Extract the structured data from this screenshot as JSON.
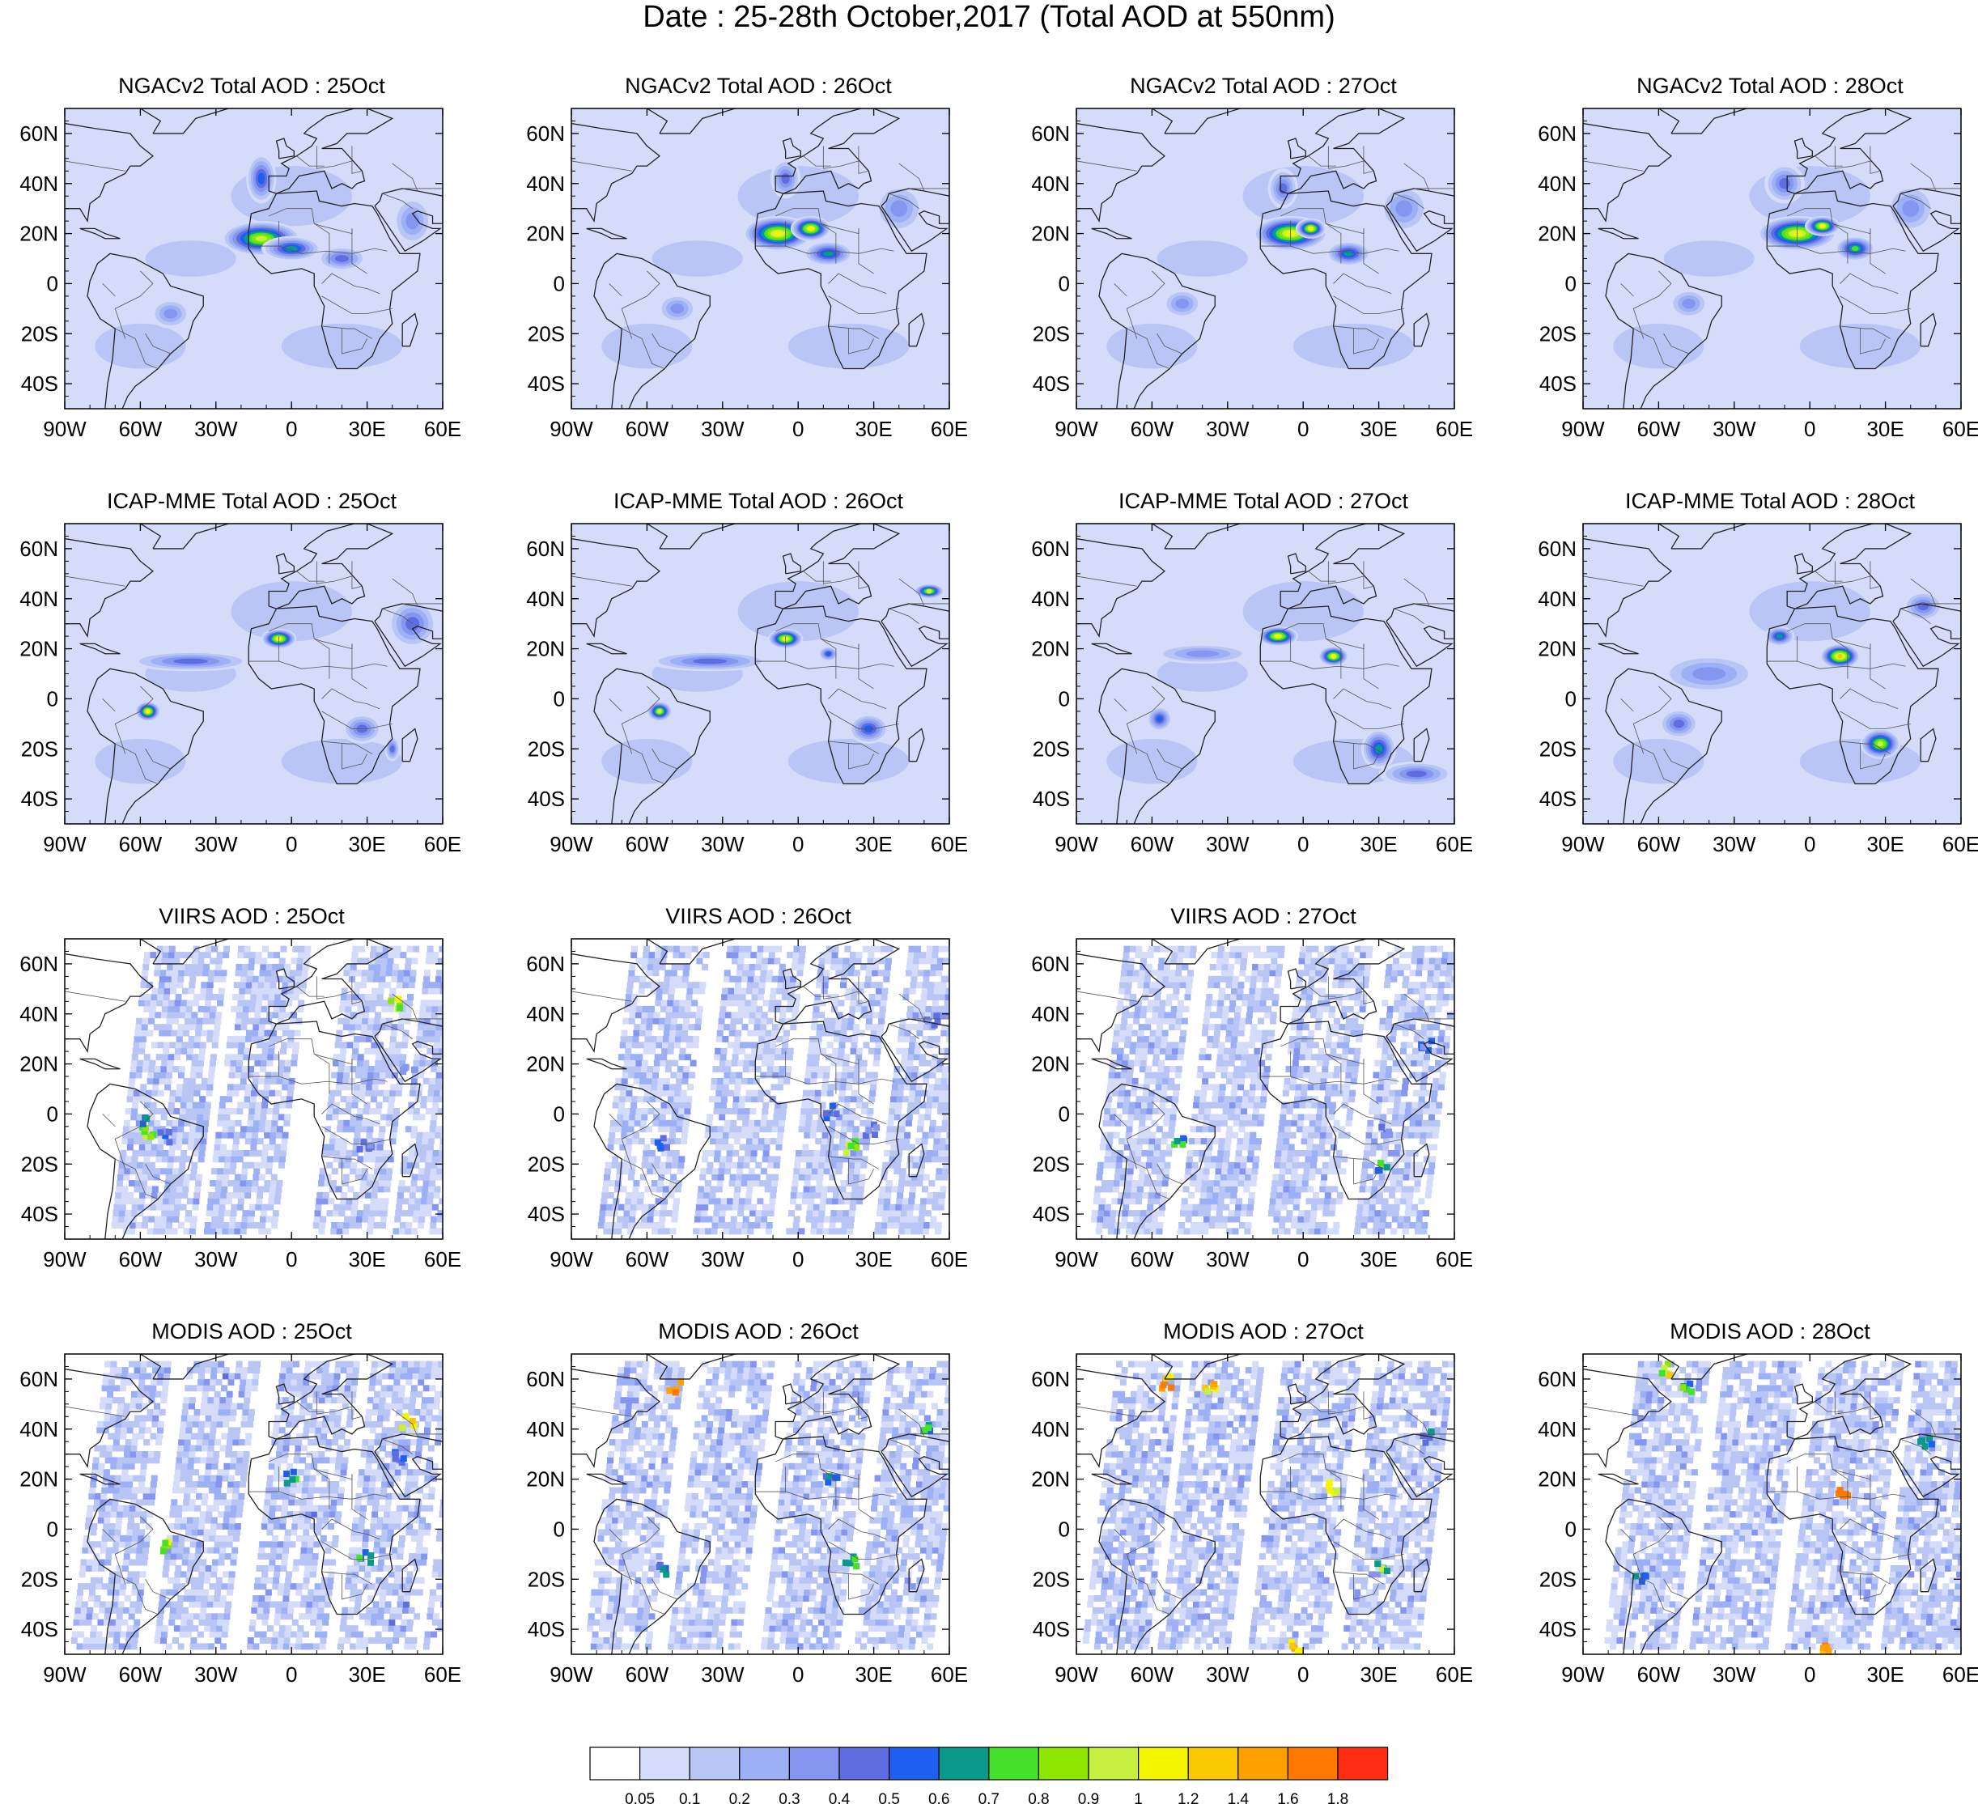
{
  "title": "Date : 25-28th October,2017 (Total AOD at 550nm)",
  "axes": {
    "lon_labels": [
      "90W",
      "60W",
      "30W",
      "0",
      "30E",
      "60E"
    ],
    "lon_values": [
      -90,
      -60,
      -30,
      0,
      30,
      60
    ],
    "lat_labels": [
      "60N",
      "40N",
      "20N",
      "0",
      "20S",
      "40S"
    ],
    "lat_values": [
      60,
      40,
      20,
      0,
      -20,
      -40
    ],
    "lon_range": [
      -90,
      60
    ],
    "lat_range": [
      -50,
      70
    ]
  },
  "colorbar": {
    "levels": [
      "0.05",
      "0.1",
      "0.2",
      "0.3",
      "0.4",
      "0.5",
      "0.6",
      "0.7",
      "0.8",
      "0.9",
      "1",
      "1.2",
      "1.4",
      "1.6",
      "1.8"
    ],
    "colors": [
      "#ffffff",
      "#d4dcfa",
      "#b9c5f5",
      "#9db0f5",
      "#8696f0",
      "#5e6ee0",
      "#1e5ff2",
      "#0a9a8c",
      "#46e12d",
      "#8ce600",
      "#c8f040",
      "#f5f500",
      "#fac800",
      "#ffa000",
      "#ff7800",
      "#ff2d14"
    ]
  },
  "panels": [
    {
      "id": "ngac-25",
      "title": "NGACv2 Total AOD : 25Oct",
      "row": 0,
      "col": 0,
      "kind": "model",
      "plumes": [
        [
          -12,
          18,
          16,
          7,
          0.9
        ],
        [
          0,
          14,
          12,
          5,
          0.6
        ],
        [
          -12,
          42,
          6,
          10,
          0.5
        ],
        [
          20,
          10,
          10,
          5,
          0.45
        ],
        [
          -48,
          -12,
          8,
          6,
          0.3
        ],
        [
          48,
          25,
          8,
          10,
          0.35
        ]
      ]
    },
    {
      "id": "ngac-26",
      "title": "NGACv2 Total AOD : 26Oct",
      "row": 0,
      "col": 1,
      "kind": "model",
      "plumes": [
        [
          -8,
          20,
          14,
          7,
          1.0
        ],
        [
          5,
          22,
          8,
          5,
          1.0
        ],
        [
          12,
          12,
          10,
          5,
          0.6
        ],
        [
          -5,
          42,
          6,
          8,
          0.4
        ],
        [
          -48,
          -10,
          8,
          6,
          0.3
        ],
        [
          40,
          30,
          10,
          10,
          0.3
        ]
      ]
    },
    {
      "id": "ngac-27",
      "title": "NGACv2 Total AOD : 27Oct",
      "row": 0,
      "col": 2,
      "kind": "model",
      "plumes": [
        [
          -5,
          20,
          15,
          7,
          1.0
        ],
        [
          3,
          22,
          6,
          4,
          1.1
        ],
        [
          18,
          12,
          9,
          5,
          0.6
        ],
        [
          -8,
          38,
          6,
          8,
          0.4
        ],
        [
          -48,
          -8,
          8,
          6,
          0.3
        ],
        [
          40,
          30,
          10,
          10,
          0.3
        ]
      ]
    },
    {
      "id": "ngac-28",
      "title": "NGACv2 Total AOD : 28Oct",
      "row": 0,
      "col": 3,
      "kind": "model",
      "plumes": [
        [
          -5,
          20,
          16,
          7,
          1.0
        ],
        [
          5,
          23,
          7,
          4,
          1.0
        ],
        [
          18,
          14,
          8,
          5,
          0.7
        ],
        [
          -10,
          40,
          8,
          8,
          0.4
        ],
        [
          -48,
          -8,
          8,
          6,
          0.3
        ],
        [
          40,
          30,
          10,
          10,
          0.3
        ]
      ]
    },
    {
      "id": "icap-25",
      "title": "ICAP-MME Total AOD : 25Oct",
      "row": 1,
      "col": 0,
      "kind": "model",
      "plumes": [
        [
          -5,
          24,
          7,
          4,
          1.0
        ],
        [
          -57,
          -5,
          5,
          4,
          1.0
        ],
        [
          -40,
          15,
          25,
          4,
          0.4
        ],
        [
          48,
          30,
          10,
          10,
          0.45
        ],
        [
          28,
          -12,
          8,
          6,
          0.4
        ],
        [
          40,
          -20,
          3,
          5,
          0.4
        ]
      ]
    },
    {
      "id": "icap-26",
      "title": "ICAP-MME Total AOD : 26Oct",
      "row": 1,
      "col": 1,
      "kind": "model",
      "plumes": [
        [
          -5,
          24,
          7,
          4,
          1.0
        ],
        [
          -55,
          -5,
          5,
          4,
          0.9
        ],
        [
          52,
          43,
          6,
          3,
          0.9
        ],
        [
          28,
          -12,
          8,
          6,
          0.5
        ],
        [
          -35,
          15,
          25,
          4,
          0.4
        ],
        [
          12,
          18,
          4,
          3,
          0.5
        ]
      ]
    },
    {
      "id": "icap-27",
      "title": "ICAP-MME Total AOD : 27Oct",
      "row": 1,
      "col": 2,
      "kind": "model",
      "plumes": [
        [
          -10,
          25,
          8,
          4,
          1.0
        ],
        [
          12,
          17,
          6,
          4,
          1.1
        ],
        [
          30,
          -20,
          7,
          8,
          0.6
        ],
        [
          -57,
          -8,
          5,
          5,
          0.5
        ],
        [
          45,
          -30,
          15,
          5,
          0.4
        ],
        [
          -40,
          18,
          20,
          4,
          0.35
        ]
      ]
    },
    {
      "id": "icap-28",
      "title": "ICAP-MME Total AOD : 28Oct",
      "row": 1,
      "col": 3,
      "kind": "model",
      "plumes": [
        [
          12,
          17,
          8,
          5,
          1.2
        ],
        [
          -12,
          25,
          6,
          4,
          0.6
        ],
        [
          28,
          -18,
          8,
          6,
          0.9
        ],
        [
          -52,
          -10,
          8,
          6,
          0.45
        ],
        [
          45,
          37,
          8,
          6,
          0.4
        ],
        [
          -40,
          10,
          20,
          8,
          0.35
        ]
      ]
    },
    {
      "id": "viirs-25",
      "title": "VIIRS AOD : 25Oct",
      "row": 2,
      "col": 0,
      "kind": "sat",
      "seed": 11,
      "swaths": [
        [
          -72,
          -40
        ],
        [
          -35,
          -8
        ],
        [
          8,
          35
        ],
        [
          40,
          60
        ]
      ],
      "hot": [
        [
          -58,
          -6,
          1.0
        ],
        [
          -60,
          -2,
          0.9
        ],
        [
          -52,
          -8,
          0.6
        ],
        [
          40,
          45,
          1.1
        ],
        [
          28,
          -12,
          0.6
        ],
        [
          45,
          20,
          0.5
        ]
      ]
    },
    {
      "id": "viirs-26",
      "title": "VIIRS AOD : 26Oct",
      "row": 2,
      "col": 1,
      "kind": "sat",
      "seed": 23,
      "swaths": [
        [
          -80,
          -50
        ],
        [
          -42,
          -12
        ],
        [
          -5,
          22
        ],
        [
          30,
          55
        ]
      ],
      "hot": [
        [
          20,
          -12,
          1.0
        ],
        [
          12,
          2,
          0.7
        ],
        [
          -55,
          -10,
          0.6
        ],
        [
          52,
          38,
          0.5
        ],
        [
          28,
          -5,
          0.5
        ]
      ]
    },
    {
      "id": "viirs-27",
      "title": "VIIRS AOD : 27Oct",
      "row": 2,
      "col": 2,
      "kind": "sat",
      "seed": 37,
      "swaths": [
        [
          -85,
          -58
        ],
        [
          -50,
          -22
        ],
        [
          -15,
          12
        ],
        [
          20,
          48
        ]
      ],
      "hot": [
        [
          -50,
          -10,
          0.8
        ],
        [
          30,
          -20,
          0.9
        ],
        [
          48,
          28,
          0.6
        ],
        [
          32,
          -5,
          0.5
        ]
      ]
    },
    {
      "id": "modis-25",
      "title": "MODIS AOD : 25Oct",
      "row": 3,
      "col": 0,
      "kind": "sat",
      "seed": 51,
      "swaths": [
        [
          -88,
          -62
        ],
        [
          -55,
          -28
        ],
        [
          -18,
          12
        ],
        [
          18,
          48
        ],
        [
          52,
          60
        ]
      ],
      "hot": [
        [
          -52,
          -5,
          1.2
        ],
        [
          45,
          44,
          1.4
        ],
        [
          28,
          -10,
          0.8
        ],
        [
          -2,
          22,
          0.9
        ],
        [
          42,
          30,
          0.7
        ]
      ]
    },
    {
      "id": "modis-26",
      "title": "MODIS AOD : 26Oct",
      "row": 3,
      "col": 1,
      "kind": "sat",
      "seed": 63,
      "swaths": [
        [
          -85,
          -60
        ],
        [
          -52,
          -25
        ],
        [
          -15,
          15
        ],
        [
          22,
          52
        ]
      ],
      "hot": [
        [
          -50,
          58,
          1.8
        ],
        [
          20,
          -12,
          0.9
        ],
        [
          12,
          22,
          0.8
        ],
        [
          -55,
          -15,
          0.7
        ],
        [
          50,
          42,
          0.8
        ]
      ]
    },
    {
      "id": "modis-27",
      "title": "MODIS AOD : 27Oct",
      "row": 3,
      "col": 2,
      "kind": "sat",
      "seed": 77,
      "swaths": [
        [
          -88,
          -62
        ],
        [
          -58,
          -30
        ],
        [
          -22,
          8
        ],
        [
          15,
          45
        ]
      ],
      "hot": [
        [
          -55,
          60,
          1.8
        ],
        [
          -38,
          58,
          1.5
        ],
        [
          10,
          18,
          1.2
        ],
        [
          30,
          -15,
          1.0
        ],
        [
          -5,
          -46,
          1.6
        ],
        [
          48,
          38,
          0.7
        ]
      ]
    },
    {
      "id": "modis-28",
      "title": "MODIS AOD : 28Oct",
      "row": 3,
      "col": 3,
      "kind": "sat",
      "seed": 91,
      "swaths": [
        [
          -82,
          -55
        ],
        [
          -48,
          -18
        ],
        [
          -10,
          22
        ],
        [
          28,
          58
        ]
      ],
      "hot": [
        [
          12,
          15,
          1.8
        ],
        [
          -50,
          57,
          0.9
        ],
        [
          5,
          -47,
          1.8
        ],
        [
          -58,
          65,
          1.3
        ],
        [
          45,
          35,
          0.7
        ],
        [
          -68,
          -18,
          0.8
        ]
      ]
    }
  ]
}
